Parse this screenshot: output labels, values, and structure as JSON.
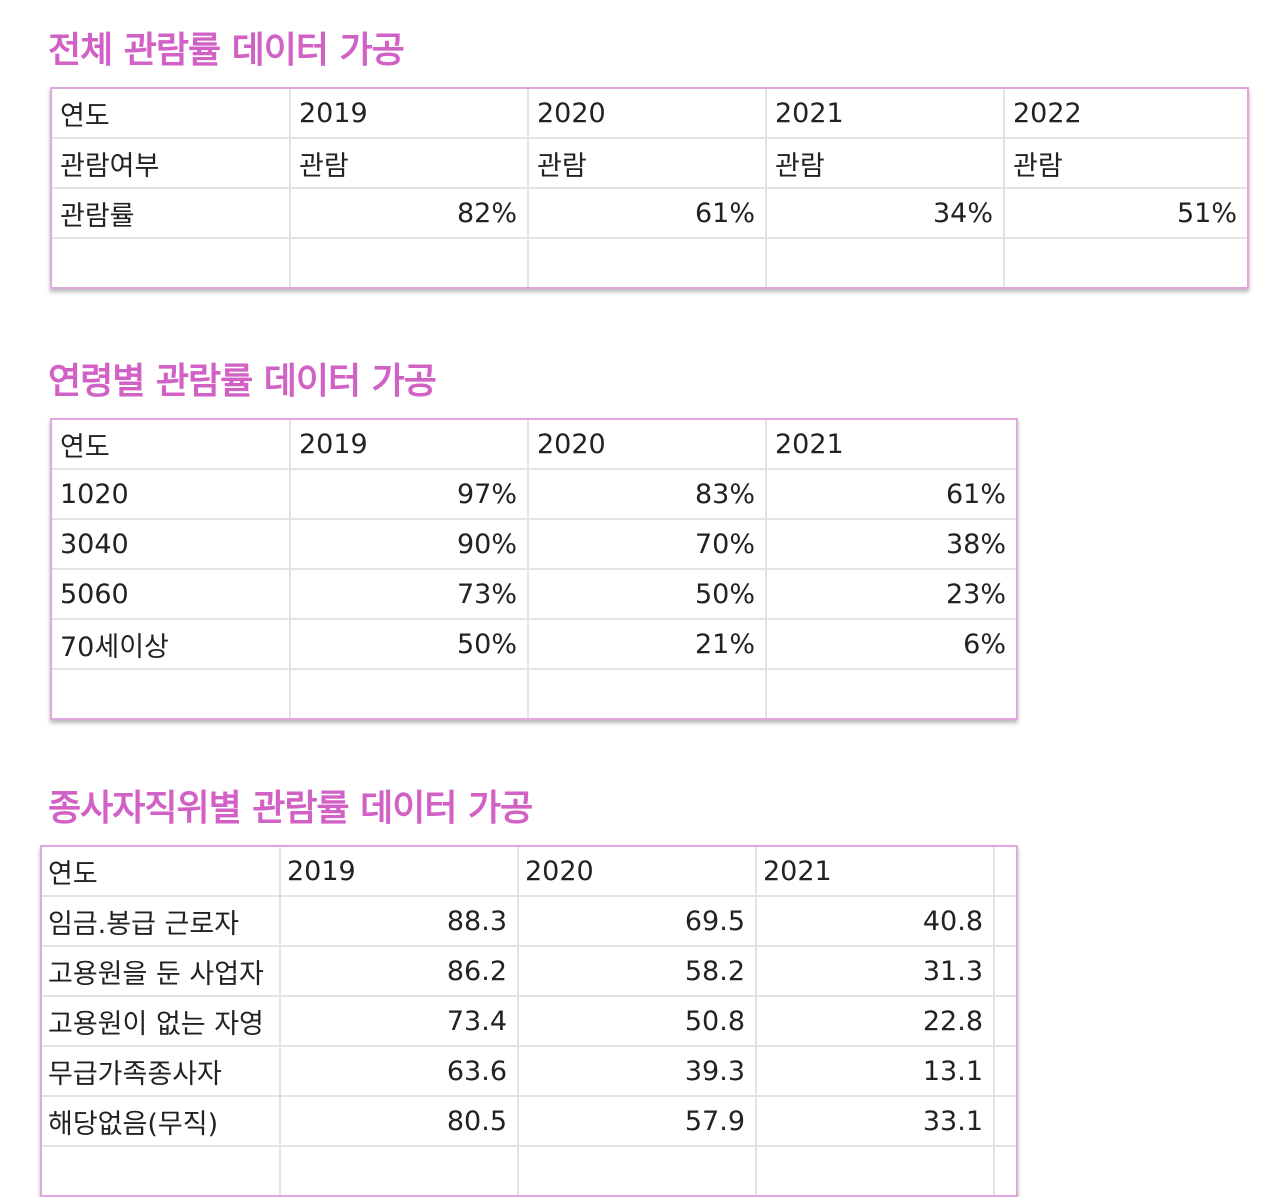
{
  "section1": {
    "title": "전체 관람률 데이터 가공",
    "header": [
      "연도",
      "2019",
      "2020",
      "2021",
      "2022"
    ],
    "rows": [
      [
        "관람여부",
        "관람",
        "관람",
        "관람",
        "관람"
      ],
      [
        "관람률",
        "82%",
        "61%",
        "34%",
        "51%"
      ]
    ]
  },
  "section2": {
    "title": "연령별 관람률 데이터 가공",
    "header": [
      "연도",
      "2019",
      "2020",
      "2021"
    ],
    "rows": [
      [
        "1020",
        "97%",
        "83%",
        "61%"
      ],
      [
        "3040",
        "90%",
        "70%",
        "38%"
      ],
      [
        "5060",
        "73%",
        "50%",
        "23%"
      ],
      [
        "70세이상",
        "50%",
        "21%",
        "6%"
      ]
    ]
  },
  "section3": {
    "title": "종사자직위별 관람률 데이터 가공",
    "header": [
      "연도",
      "2019",
      "2020",
      "2021"
    ],
    "rows": [
      [
        "임금.봉급 근로자",
        "88.3",
        "69.5",
        "40.8"
      ],
      [
        "고용원을 둔 사업자",
        "86.2",
        "58.2",
        "31.3"
      ],
      [
        "고용원이 없는 자영",
        "73.4",
        "50.8",
        "22.8"
      ],
      [
        "무급가족종사자",
        "63.6",
        "39.3",
        "13.1"
      ],
      [
        "해당없음(무직)",
        "80.5",
        "57.9",
        "33.1"
      ]
    ]
  },
  "colors": {
    "title": "#d261c6",
    "table_border": "#e1a6dc",
    "grid": "#e3e3e3"
  }
}
